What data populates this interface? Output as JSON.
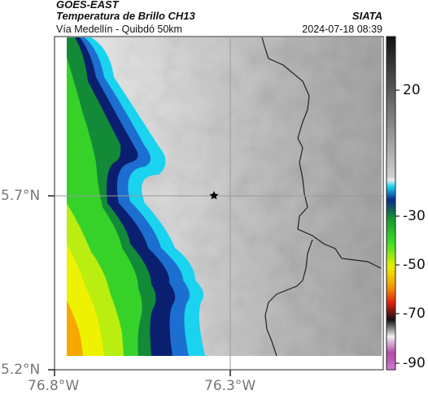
{
  "header": {
    "satellite": "GOES-EAST",
    "product": "Temperatura de Brillo CH13",
    "organization": "SIATA",
    "route": "Vía Medellín - Quibdó 50km",
    "datetime": "2024-07-18 08:39"
  },
  "axes": {
    "y_ticks": [
      "5.7°N",
      "5.2°N"
    ],
    "x_ticks": [
      "76.8°W",
      "76.3°W"
    ]
  },
  "marker": {
    "icon": "star-icon"
  },
  "colorbar": {
    "ticks": [
      "20",
      "-30",
      "-50",
      "-70",
      "-90"
    ]
  },
  "colors": {
    "cloud_cold_band": "#0a1f70",
    "cloud_cyan_edge": "#18d4ee",
    "green_field": "#2fd12b",
    "yellow_field": "#e8f200",
    "orange_field": "#f6a800",
    "border_line": "#222222"
  }
}
